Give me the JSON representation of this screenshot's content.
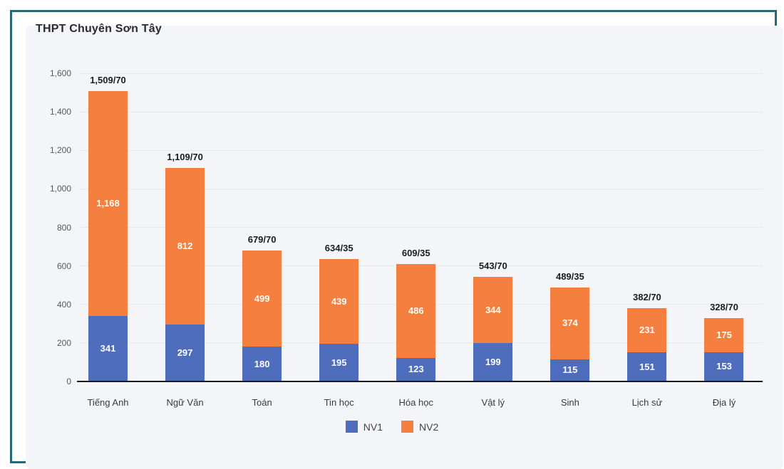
{
  "title": "THPT Chuyên Sơn Tây",
  "colors": {
    "frame_border": "#266779",
    "card_background": "#f4f5f8",
    "gridline": "#e6e8ec",
    "axis_line": "#1a1a1a",
    "nv1_blue": "#4e6dbd",
    "nv2_orange": "#f47f3e"
  },
  "chart_data": {
    "type": "bar",
    "stacked": true,
    "title": "THPT Chuyên Sơn Tây",
    "xlabel": "",
    "ylabel": "",
    "grid": true,
    "legend_position": "bottom",
    "ylim": [
      0,
      1600
    ],
    "categories": [
      "Tiếng Anh",
      "Ngữ Văn",
      "Toán",
      "Tin học",
      "Hóa học",
      "Vật lý",
      "Sinh",
      "Lịch sử",
      "Địa lý"
    ],
    "series": [
      {
        "name": "NV1",
        "color": "#4e6dbd",
        "values": [
          341,
          297,
          180,
          195,
          123,
          199,
          115,
          151,
          153
        ]
      },
      {
        "name": "NV2",
        "color": "#f47f3e",
        "values": [
          1168,
          812,
          499,
          439,
          486,
          344,
          374,
          231,
          175
        ]
      }
    ],
    "segment_labels": [
      [
        "341",
        "297",
        "180",
        "195",
        "123",
        "199",
        "115",
        "151",
        "153"
      ],
      [
        "1,168",
        "812",
        "499",
        "439",
        "486",
        "344",
        "374",
        "231",
        "175"
      ]
    ],
    "total_labels": [
      "1,509/70",
      "1,109/70",
      "679/70",
      "634/35",
      "609/35",
      "543/70",
      "489/35",
      "382/70",
      "328/70"
    ],
    "y_ticks": [
      {
        "value": 0,
        "label": "0"
      },
      {
        "value": 200,
        "label": "200"
      },
      {
        "value": 400,
        "label": "400"
      },
      {
        "value": 600,
        "label": "600"
      },
      {
        "value": 800,
        "label": "800"
      },
      {
        "value": 1000,
        "label": "1,000"
      },
      {
        "value": 1200,
        "label": "1,200"
      },
      {
        "value": 1400,
        "label": "1,400"
      },
      {
        "value": 1600,
        "label": "1,600"
      }
    ],
    "legend": [
      "NV1",
      "NV2"
    ]
  }
}
